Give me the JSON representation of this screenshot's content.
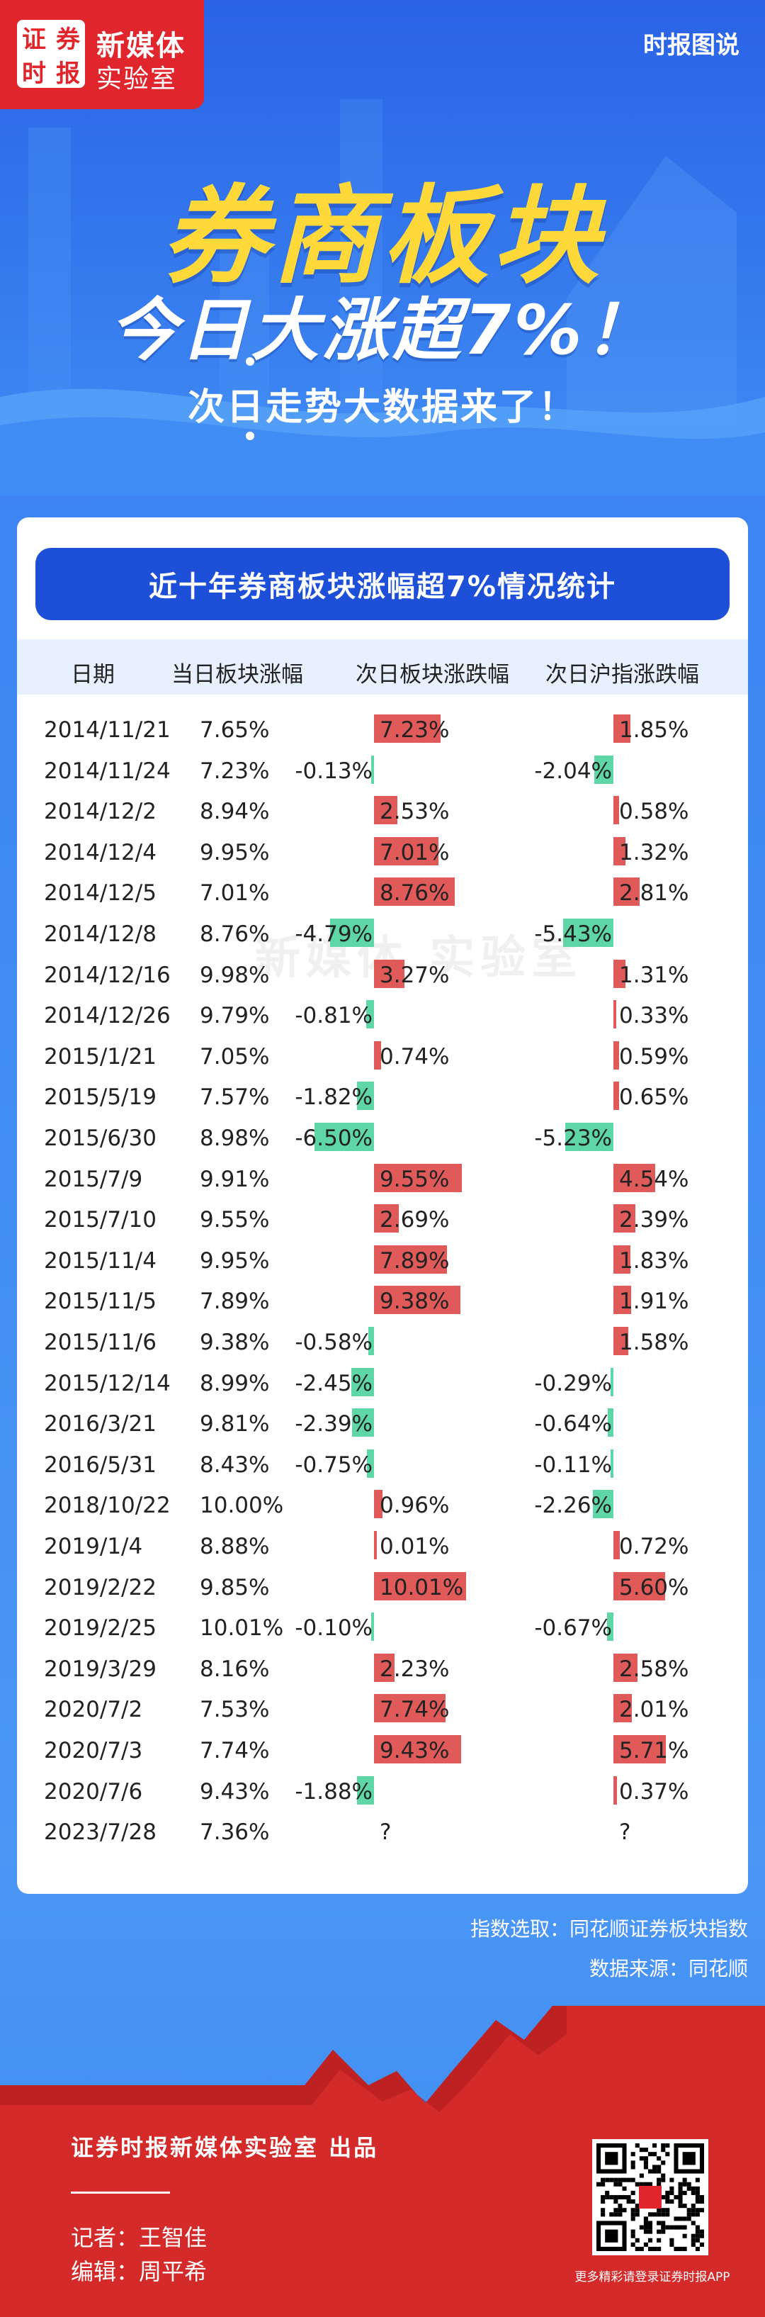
{
  "header": {
    "logo_chars": [
      "证",
      "券",
      "时",
      "报"
    ],
    "logo_line1": "新媒体",
    "logo_line2": "实验室",
    "brand_right": "时报图说",
    "title_main": "券商板块",
    "title_sub": "今日大涨超7%！",
    "title_tag": "次日走势大数据来了！"
  },
  "table": {
    "title": "近十年券商板块涨幅超7%情况统计",
    "headers": [
      "日期",
      "当日板块涨幅",
      "次日板块涨跌幅",
      "次日沪指涨跌幅"
    ],
    "rows": [
      {
        "date": "2014/11/21",
        "day": "7.65%",
        "next_sector": "7.23%",
        "next_index": "1.85%"
      },
      {
        "date": "2014/11/24",
        "day": "7.23%",
        "next_sector": "-0.13%",
        "next_index": "-2.04%"
      },
      {
        "date": "2014/12/2",
        "day": "8.94%",
        "next_sector": "2.53%",
        "next_index": "0.58%"
      },
      {
        "date": "2014/12/4",
        "day": "9.95%",
        "next_sector": "7.01%",
        "next_index": "1.32%"
      },
      {
        "date": "2014/12/5",
        "day": "7.01%",
        "next_sector": "8.76%",
        "next_index": "2.81%"
      },
      {
        "date": "2014/12/8",
        "day": "8.76%",
        "next_sector": "-4.79%",
        "next_index": "-5.43%"
      },
      {
        "date": "2014/12/16",
        "day": "9.98%",
        "next_sector": "3.27%",
        "next_index": "1.31%"
      },
      {
        "date": "2014/12/26",
        "day": "9.79%",
        "next_sector": "-0.81%",
        "next_index": "0.33%"
      },
      {
        "date": "2015/1/21",
        "day": "7.05%",
        "next_sector": "0.74%",
        "next_index": "0.59%"
      },
      {
        "date": "2015/5/19",
        "day": "7.57%",
        "next_sector": "-1.82%",
        "next_index": "0.65%"
      },
      {
        "date": "2015/6/30",
        "day": "8.98%",
        "next_sector": "-6.50%",
        "next_index": "-5.23%"
      },
      {
        "date": "2015/7/9",
        "day": "9.91%",
        "next_sector": "9.55%",
        "next_index": "4.54%"
      },
      {
        "date": "2015/7/10",
        "day": "9.55%",
        "next_sector": "2.69%",
        "next_index": "2.39%"
      },
      {
        "date": "2015/11/4",
        "day": "9.95%",
        "next_sector": "7.89%",
        "next_index": "1.83%"
      },
      {
        "date": "2015/11/5",
        "day": "7.89%",
        "next_sector": "9.38%",
        "next_index": "1.91%"
      },
      {
        "date": "2015/11/6",
        "day": "9.38%",
        "next_sector": "-0.58%",
        "next_index": "1.58%"
      },
      {
        "date": "2015/12/14",
        "day": "8.99%",
        "next_sector": "-2.45%",
        "next_index": "-0.29%"
      },
      {
        "date": "2016/3/21",
        "day": "9.81%",
        "next_sector": "-2.39%",
        "next_index": "-0.64%"
      },
      {
        "date": "2016/5/31",
        "day": "8.43%",
        "next_sector": "-0.75%",
        "next_index": "-0.11%"
      },
      {
        "date": "2018/10/22",
        "day": "10.00%",
        "next_sector": "0.96%",
        "next_index": "-2.26%"
      },
      {
        "date": "2019/1/4",
        "day": "8.88%",
        "next_sector": "0.01%",
        "next_index": "0.72%"
      },
      {
        "date": "2019/2/22",
        "day": "9.85%",
        "next_sector": "10.01%",
        "next_index": "5.60%"
      },
      {
        "date": "2019/2/25",
        "day": "10.01%",
        "next_sector": "-0.10%",
        "next_index": "-0.67%"
      },
      {
        "date": "2019/3/29",
        "day": "8.16%",
        "next_sector": "2.23%",
        "next_index": "2.58%"
      },
      {
        "date": "2020/7/2",
        "day": "7.53%",
        "next_sector": "7.74%",
        "next_index": "2.01%"
      },
      {
        "date": "2020/7/3",
        "day": "7.74%",
        "next_sector": "9.43%",
        "next_index": "5.71%"
      },
      {
        "date": "2020/7/6",
        "day": "9.43%",
        "next_sector": "-1.88%",
        "next_index": "0.37%"
      },
      {
        "date": "2023/7/28",
        "day": "7.36%",
        "next_sector": "?",
        "next_index": "?"
      }
    ]
  },
  "chart_data": {
    "type": "table",
    "title": "近十年券商板块涨幅超7%情况统计",
    "columns": [
      "日期",
      "当日板块涨幅",
      "次日板块涨跌幅",
      "次日沪指涨跌幅"
    ],
    "x": [
      "2014/11/21",
      "2014/11/24",
      "2014/12/2",
      "2014/12/4",
      "2014/12/5",
      "2014/12/8",
      "2014/12/16",
      "2014/12/26",
      "2015/1/21",
      "2015/5/19",
      "2015/6/30",
      "2015/7/9",
      "2015/7/10",
      "2015/11/4",
      "2015/11/5",
      "2015/11/6",
      "2015/12/14",
      "2016/3/21",
      "2016/5/31",
      "2018/10/22",
      "2019/1/4",
      "2019/2/22",
      "2019/2/25",
      "2019/3/29",
      "2020/7/2",
      "2020/7/3",
      "2020/7/6",
      "2023/7/28"
    ],
    "series": [
      {
        "name": "当日板块涨幅",
        "values": [
          7.65,
          7.23,
          8.94,
          9.95,
          7.01,
          8.76,
          9.98,
          9.79,
          7.05,
          7.57,
          8.98,
          9.91,
          9.55,
          9.95,
          7.89,
          9.38,
          8.99,
          9.81,
          8.43,
          10.0,
          8.88,
          9.85,
          10.01,
          8.16,
          7.53,
          7.74,
          9.43,
          7.36
        ]
      },
      {
        "name": "次日板块涨跌幅",
        "values": [
          7.23,
          -0.13,
          2.53,
          7.01,
          8.76,
          -4.79,
          3.27,
          -0.81,
          0.74,
          -1.82,
          -6.5,
          9.55,
          2.69,
          7.89,
          9.38,
          -0.58,
          -2.45,
          -2.39,
          -0.75,
          0.96,
          0.01,
          10.01,
          -0.1,
          2.23,
          7.74,
          9.43,
          -1.88,
          null
        ]
      },
      {
        "name": "次日沪指涨跌幅",
        "values": [
          1.85,
          -2.04,
          0.58,
          1.32,
          2.81,
          -5.43,
          1.31,
          0.33,
          0.59,
          0.65,
          -5.23,
          4.54,
          2.39,
          1.83,
          1.91,
          1.58,
          -0.29,
          -0.64,
          -0.11,
          -2.26,
          0.72,
          5.6,
          -0.67,
          2.58,
          2.01,
          5.71,
          0.37,
          null
        ]
      }
    ],
    "colors": {
      "positive": "#e05a5a",
      "negative": "#5ed6a6"
    }
  },
  "watermark": "新媒体 实验室",
  "notes": {
    "index": "指数选取：同花顺证券板块指数",
    "source": "数据来源：同花顺"
  },
  "footer": {
    "credit": "证券时报新媒体实验室 出品",
    "reporter": "记者：王智佳",
    "editor": "编辑：周平希",
    "qr_caption": "更多精彩请登录证券时报APP"
  }
}
